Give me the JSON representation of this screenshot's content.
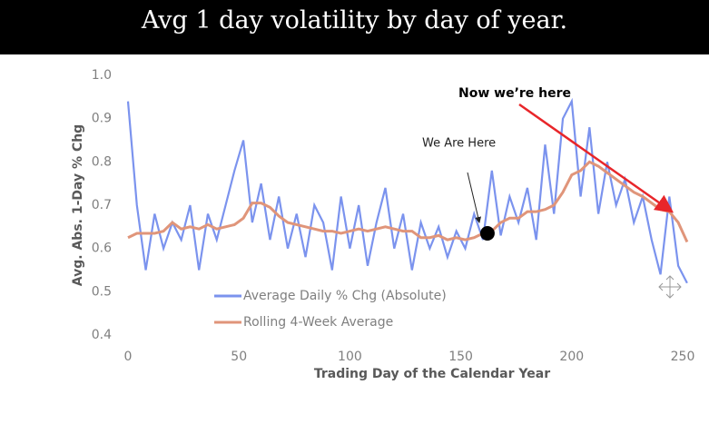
{
  "chart_data": {
    "type": "line",
    "title": "Avg 1 day volatility by day of year.",
    "x_label": "Trading Day of the Calendar Year",
    "y_label": "Avg. Abs. 1-Day % Chg",
    "x": [
      0,
      4,
      8,
      12,
      16,
      20,
      24,
      28,
      32,
      36,
      40,
      44,
      48,
      52,
      56,
      60,
      64,
      68,
      72,
      76,
      80,
      84,
      88,
      92,
      96,
      100,
      104,
      108,
      112,
      116,
      120,
      124,
      128,
      132,
      136,
      140,
      144,
      148,
      152,
      156,
      160,
      164,
      168,
      172,
      176,
      180,
      184,
      188,
      192,
      196,
      200,
      204,
      208,
      212,
      216,
      220,
      224,
      228,
      232,
      236,
      240,
      244,
      248,
      252
    ],
    "series": [
      {
        "name": "Average Daily % Chg (Absolute)",
        "color": "#7b93ee",
        "values": [
          0.94,
          0.7,
          0.55,
          0.68,
          0.6,
          0.66,
          0.62,
          0.7,
          0.55,
          0.68,
          0.62,
          0.7,
          0.78,
          0.85,
          0.66,
          0.75,
          0.62,
          0.72,
          0.6,
          0.68,
          0.58,
          0.7,
          0.66,
          0.55,
          0.72,
          0.6,
          0.7,
          0.56,
          0.66,
          0.74,
          0.6,
          0.68,
          0.55,
          0.66,
          0.6,
          0.65,
          0.58,
          0.64,
          0.6,
          0.68,
          0.62,
          0.78,
          0.63,
          0.72,
          0.66,
          0.74,
          0.62,
          0.84,
          0.68,
          0.9,
          0.94,
          0.72,
          0.88,
          0.68,
          0.8,
          0.7,
          0.76,
          0.66,
          0.72,
          0.62,
          0.54,
          0.72,
          0.56,
          0.52
        ]
      },
      {
        "name": "Rolling 4-Week Average",
        "color": "#e0957a",
        "values": [
          0.625,
          0.635,
          0.635,
          0.635,
          0.64,
          0.66,
          0.645,
          0.65,
          0.645,
          0.655,
          0.645,
          0.65,
          0.655,
          0.67,
          0.705,
          0.705,
          0.695,
          0.675,
          0.66,
          0.655,
          0.65,
          0.645,
          0.64,
          0.64,
          0.635,
          0.64,
          0.645,
          0.64,
          0.645,
          0.65,
          0.645,
          0.64,
          0.64,
          0.625,
          0.625,
          0.63,
          0.62,
          0.625,
          0.62,
          0.625,
          0.635,
          0.64,
          0.66,
          0.67,
          0.67,
          0.685,
          0.685,
          0.69,
          0.7,
          0.73,
          0.77,
          0.78,
          0.8,
          0.79,
          0.775,
          0.76,
          0.745,
          0.73,
          0.72,
          0.705,
          0.69,
          0.685,
          0.66,
          0.615
        ]
      }
    ],
    "xlim": [
      0,
      250
    ],
    "xticks": [
      0,
      50,
      100,
      150,
      200,
      250
    ],
    "ylim": [
      0.4,
      1.0
    ],
    "yticks": [
      {
        "value": 0.4,
        "label": "0.4"
      },
      {
        "value": 0.5,
        "label": "0.5"
      },
      {
        "value": 0.6,
        "label": "0.6"
      },
      {
        "value": 0.7,
        "label": "0.7"
      },
      {
        "value": 0.8,
        "label": "0.8"
      },
      {
        "value": 0.9,
        "label": "0.9"
      },
      {
        "value": 1.0,
        "label": "1.0"
      }
    ],
    "marker": {
      "x": 162,
      "y": 0.635
    },
    "annotations": [
      "Now we’re here",
      "We Are Here"
    ]
  }
}
